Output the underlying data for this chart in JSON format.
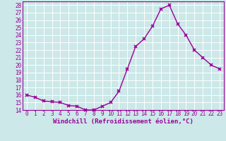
{
  "x": [
    0,
    1,
    2,
    3,
    4,
    5,
    6,
    7,
    8,
    9,
    10,
    11,
    12,
    13,
    14,
    15,
    16,
    17,
    18,
    19,
    20,
    21,
    22,
    23
  ],
  "y": [
    16,
    15.7,
    15.2,
    15.1,
    15.0,
    14.6,
    14.5,
    14.0,
    14.0,
    14.5,
    15.0,
    16.5,
    19.5,
    22.5,
    23.5,
    25.2,
    27.5,
    28.0,
    25.5,
    24.0,
    22.0,
    21.0,
    20.0,
    19.5
  ],
  "line_color": "#990099",
  "marker": "x",
  "bg_color": "#cce8e8",
  "grid_color": "#ffffff",
  "xlabel": "Windchill (Refroidissement éolien,°C)",
  "xlabel_color": "#990099",
  "ylim_min": 14,
  "ylim_max": 28.5,
  "yticks": [
    14,
    15,
    16,
    17,
    18,
    19,
    20,
    21,
    22,
    23,
    24,
    25,
    26,
    27,
    28
  ],
  "xticks": [
    0,
    1,
    2,
    3,
    4,
    5,
    6,
    7,
    8,
    9,
    10,
    11,
    12,
    13,
    14,
    15,
    16,
    17,
    18,
    19,
    20,
    21,
    22,
    23
  ],
  "tick_label_size": 5.5,
  "xlabel_size": 6.5,
  "linewidth": 1.0,
  "markersize": 3.5,
  "markeredgewidth": 1.2
}
